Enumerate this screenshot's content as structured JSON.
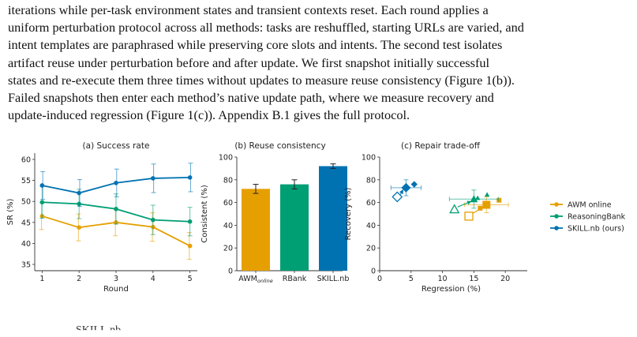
{
  "paragraph": {
    "lines": [
      "iterations while per-task environment states and transient contexts reset.  Each round applies a",
      "uniform perturbation protocol across all methods: tasks are reshuffled, starting URLs are varied, and",
      "intent templates are paraphrased while preserving core slots and intents. The second test isolates",
      "artifact reuse under perturbation before and after update. We first snapshot initially successful",
      "states and re-execute them three times without updates to measure reuse consistency (Figure 1(b)).",
      "Failed snapshots then enter each method’s native update path, where we measure recovery and",
      "update-induced regression (Figure 1(c)). Appendix B.1 gives the full protocol."
    ]
  },
  "colors": {
    "awm": "#e69f00",
    "rbank": "#009e73",
    "skill": "#0072b2"
  },
  "legend": [
    {
      "label": "AWM online",
      "color": "#e69f00"
    },
    {
      "label": "ReasoningBank",
      "color": "#009e73"
    },
    {
      "label": "SKILL.nb (ours)",
      "color": "#0072b2"
    }
  ],
  "chart_data": [
    {
      "type": "line",
      "title": "(a) Success rate",
      "xlabel": "Round",
      "ylabel": "SR (%)",
      "x": [
        1,
        2,
        3,
        4,
        5
      ],
      "xticks": [
        "1",
        "2",
        "3",
        "4",
        "5"
      ],
      "yticks": [
        "35",
        "40",
        "45",
        "50",
        "55",
        "60"
      ],
      "ylim": [
        33.5,
        61.5
      ],
      "series": [
        {
          "name": "AWM online",
          "color": "#e69f00",
          "values": [
            46.5,
            43.8,
            45.0,
            43.9,
            39.4
          ],
          "err": [
            3.2,
            3.2,
            3.2,
            3.4,
            3.2
          ]
        },
        {
          "name": "ReasoningBank",
          "color": "#009e73",
          "values": [
            49.8,
            49.4,
            48.2,
            45.6,
            45.2
          ],
          "err": [
            3.8,
            3.5,
            3.6,
            3.5,
            3.4
          ]
        },
        {
          "name": "SKILL.nb (ours)",
          "color": "#0072b2",
          "values": [
            53.8,
            52.0,
            54.4,
            55.5,
            55.7
          ],
          "err": [
            3.3,
            3.2,
            3.3,
            3.4,
            3.4
          ]
        }
      ]
    },
    {
      "type": "bar",
      "title": "(b) Reuse consistency",
      "ylabel": "Consistent (%)",
      "categories": [
        "AWM",
        "RBank",
        "SKILL.nb"
      ],
      "category_subscripts": [
        "online",
        "",
        ""
      ],
      "values": [
        72,
        76,
        92
      ],
      "err": [
        4,
        4,
        2
      ],
      "colors": [
        "#e69f00",
        "#009e73",
        "#0072b2"
      ],
      "yticks": [
        "0",
        "20",
        "40",
        "60",
        "80",
        "100"
      ],
      "ylim": [
        0,
        100
      ]
    },
    {
      "type": "scatter",
      "title": "(c) Repair trade-off",
      "xlabel": "Regression (%)",
      "ylabel": "Recovery (%)",
      "xticks": [
        "0",
        "5",
        "10",
        "15",
        "20"
      ],
      "yticks": [
        "0",
        "20",
        "40",
        "60",
        "80",
        "100"
      ],
      "xlim": [
        0,
        23.5
      ],
      "ylim": [
        0,
        100
      ],
      "series": [
        {
          "name": "AWM online",
          "color": "#e69f00",
          "start": {
            "x": 14.2,
            "y": 48
          },
          "points": [
            {
              "x": 16.0,
              "y": 55
            },
            {
              "x": 19.0,
              "y": 62
            }
          ],
          "main": {
            "x": 17.0,
            "y": 58,
            "xerr": 3.5,
            "yerr": 7
          }
        },
        {
          "name": "ReasoningBank",
          "color": "#009e73",
          "start": {
            "x": 11.9,
            "y": 54
          },
          "points": [
            {
              "x": 15.6,
              "y": 64
            },
            {
              "x": 17.1,
              "y": 67
            }
          ],
          "main": {
            "x": 15.0,
            "y": 63,
            "xerr": 3.9,
            "yerr": 8
          }
        },
        {
          "name": "SKILL.nb (ours)",
          "color": "#0072b2",
          "start": {
            "x": 2.8,
            "y": 65
          },
          "points": [
            {
              "x": 5.5,
              "y": 76
            }
          ],
          "main": {
            "x": 4.2,
            "y": 73,
            "xerr": 2.4,
            "yerr": 7
          }
        }
      ]
    }
  ],
  "caption_fragment": "SKILL.nb"
}
